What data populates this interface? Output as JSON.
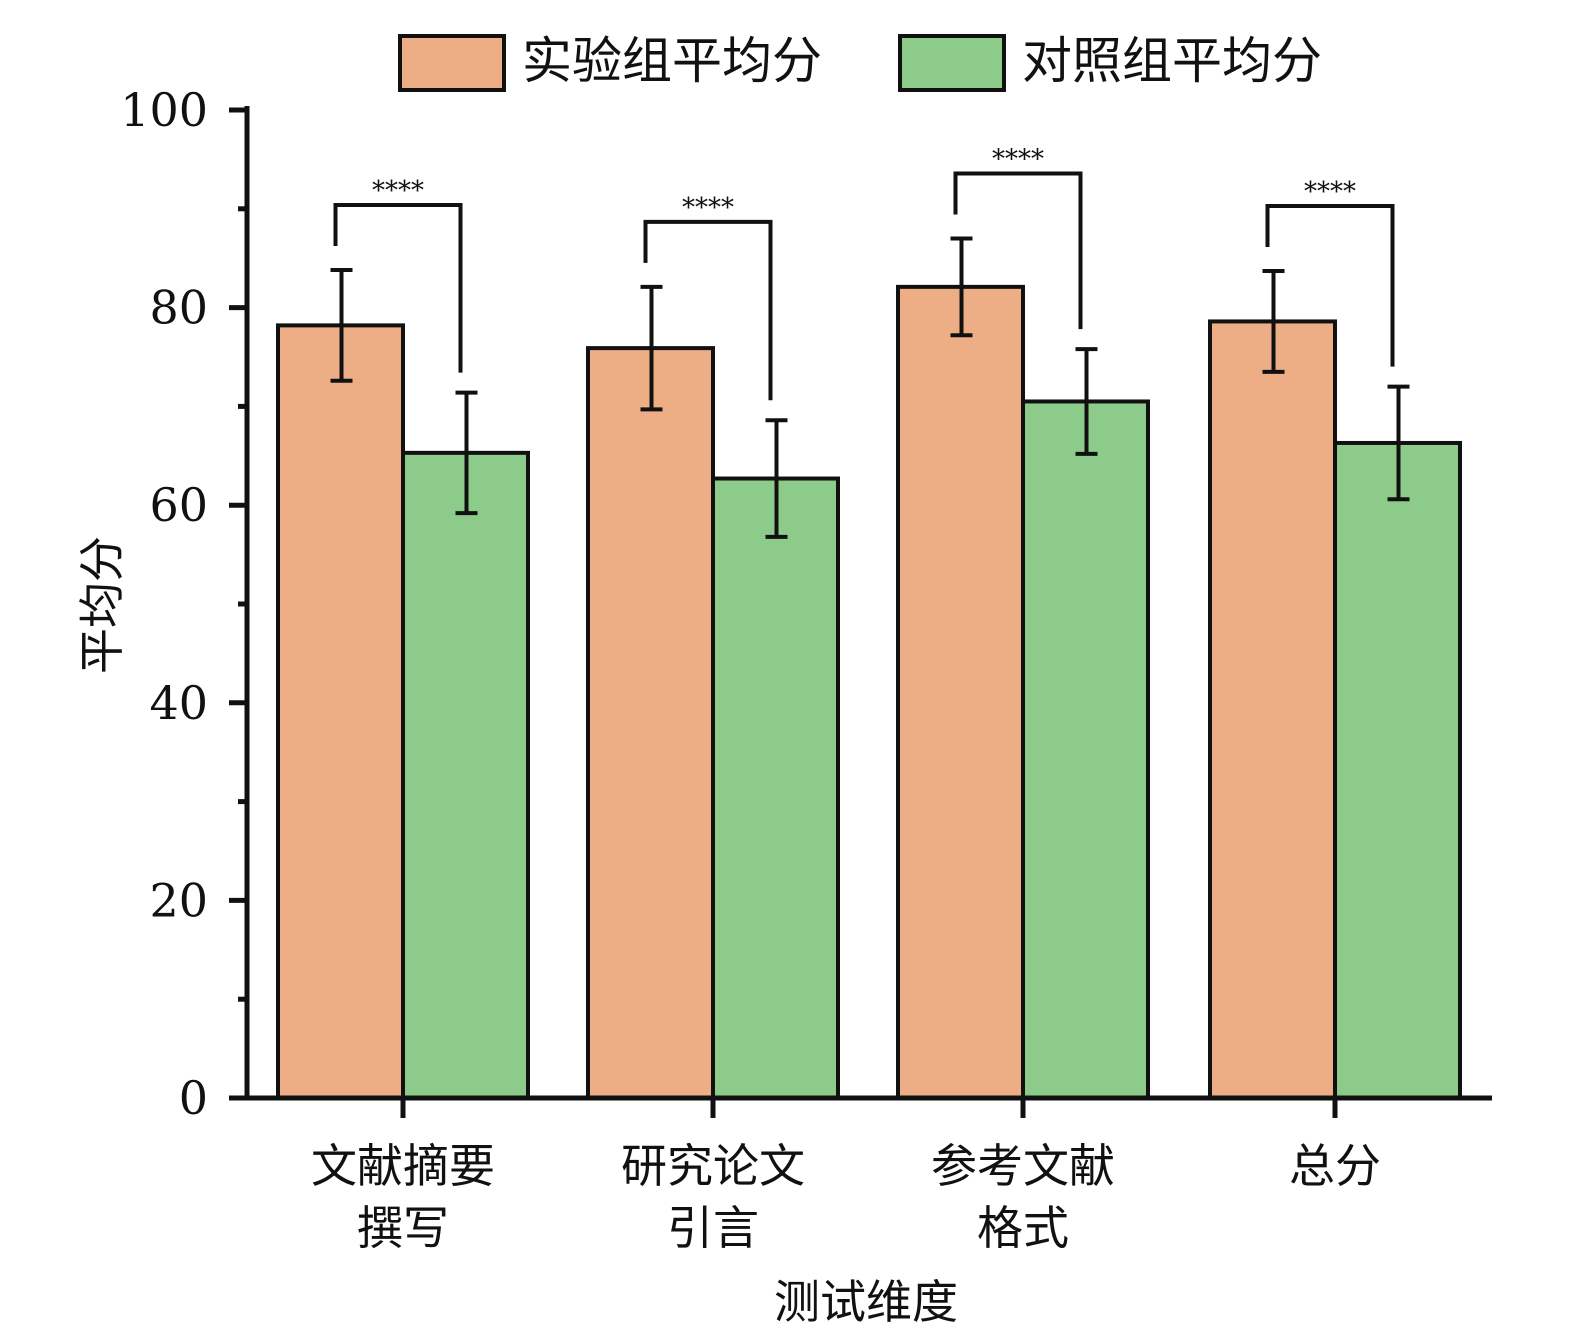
{
  "chart_data": {
    "type": "bar",
    "title": "",
    "xlabel": "测试维度",
    "ylabel": "平均分",
    "ylim": [
      0,
      100
    ],
    "yticks": [
      0,
      20,
      40,
      60,
      80,
      100
    ],
    "categories": [
      [
        "文献摘要",
        "撰写"
      ],
      [
        "研究论文",
        "引言"
      ],
      [
        "参考文献",
        "格式"
      ],
      [
        "总分"
      ]
    ],
    "series": [
      {
        "name": "实验组平均分",
        "color": "#EDAE85",
        "values": [
          78.2,
          75.9,
          82.1,
          78.6
        ],
        "errors": [
          5.6,
          6.2,
          4.9,
          5.1
        ]
      },
      {
        "name": "对照组平均分",
        "color": "#8CCB8A",
        "values": [
          65.3,
          62.7,
          70.5,
          66.3
        ],
        "errors": [
          6.1,
          5.9,
          5.3,
          5.7
        ]
      }
    ],
    "significance": [
      "****",
      "****",
      "****",
      "****"
    ],
    "legend_position": "top",
    "grid": false
  }
}
